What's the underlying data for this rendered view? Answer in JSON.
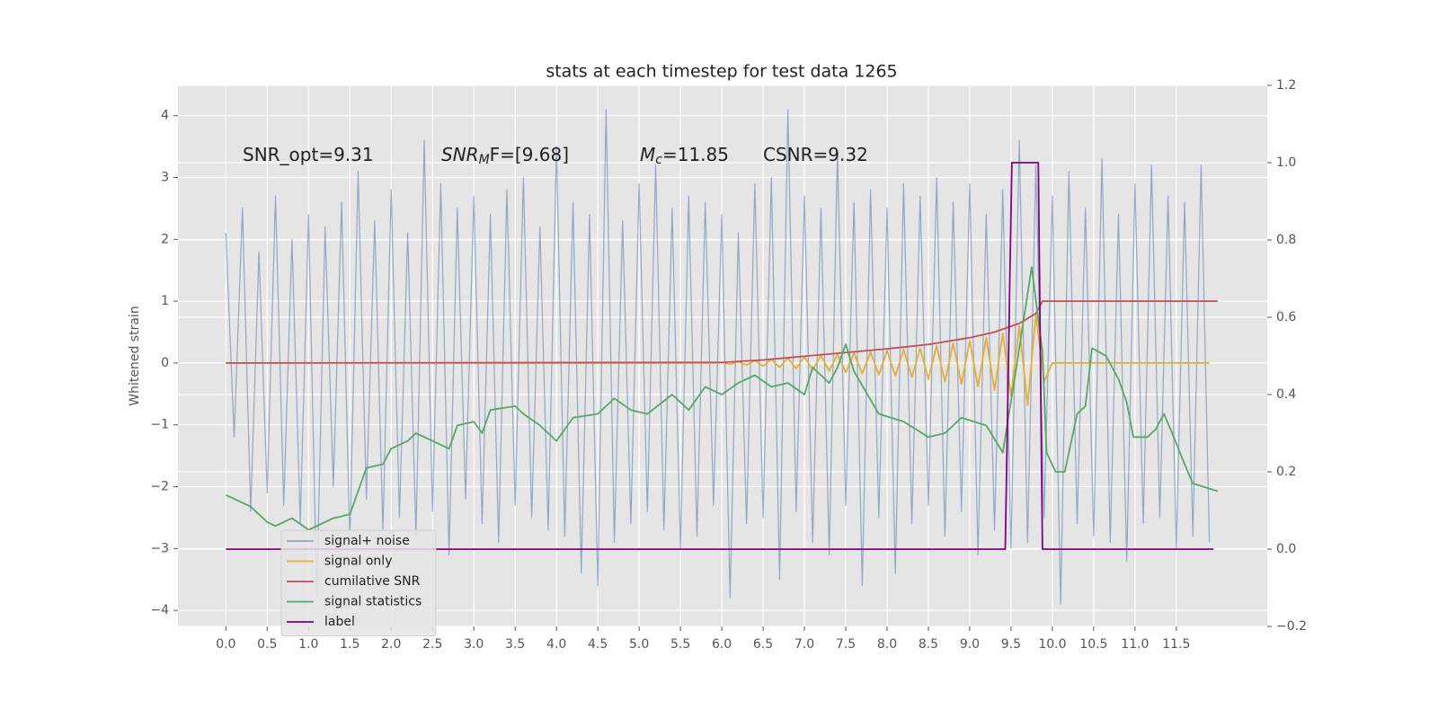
{
  "chart_data": {
    "type": "line",
    "title": "stats at each timestep for test data 1265",
    "y_label": "Whitened strain",
    "annotations": [
      [
        "SNR_opt=9.31"
      ],
      [
        "SNR",
        "M",
        "F=[9.68]"
      ],
      [
        "M",
        "c",
        "=11.85"
      ],
      [
        "CSNR=9.32"
      ]
    ],
    "xlim": [
      -0.58,
      12.6
    ],
    "ylim": [
      -4.26,
      4.49
    ],
    "y2lim": [
      -0.2,
      1.2
    ],
    "xticks": [
      {
        "value": 0,
        "label": "0.0"
      },
      0.5,
      {
        "value": 1,
        "label": "1.0"
      },
      1.5,
      {
        "value": 2,
        "label": "2.0"
      },
      2.5,
      {
        "value": 3,
        "label": "3.0"
      },
      3.5,
      {
        "value": 4,
        "label": "4.0"
      },
      4.5,
      {
        "value": 5,
        "label": "5.0"
      },
      5.5,
      {
        "value": 6,
        "label": "6.0"
      },
      6.5,
      {
        "value": 7,
        "label": "7.0"
      },
      7.5,
      {
        "value": 8,
        "label": "8.0"
      },
      8.5,
      {
        "value": 9,
        "label": "9.0"
      },
      9.5,
      {
        "value": 10,
        "label": "10.0"
      },
      10.5,
      {
        "value": 11,
        "label": "11.0"
      },
      11.5
    ],
    "yticks": [
      {
        "value": -4,
        "label": "−4"
      },
      {
        "value": -3,
        "label": "−3"
      },
      {
        "value": -2,
        "label": "−2"
      },
      {
        "value": -1,
        "label": "−1"
      },
      0,
      1,
      2,
      3,
      4
    ],
    "y2ticks": [
      {
        "value": -0.2,
        "label": "−0.2"
      },
      {
        "value": 0,
        "label": "0.0"
      },
      0.2,
      0.4,
      0.6,
      0.8,
      {
        "value": 1,
        "label": "1.0"
      },
      1.2
    ],
    "grid": true,
    "legend": "lower left",
    "series": [
      {
        "name": "signal+ noise",
        "color": "#4c72b0",
        "x": [
          0,
          0.1,
          0.2,
          0.3,
          0.4,
          0.5,
          0.6,
          0.7,
          0.8,
          0.9,
          1,
          1.1,
          1.2,
          1.3,
          1.4,
          1.5,
          1.6,
          1.7,
          1.8,
          1.9,
          2,
          2.1,
          2.2,
          2.3,
          2.4,
          2.5,
          2.6,
          2.7,
          2.8,
          2.9,
          3,
          3.1,
          3.2,
          3.3,
          3.4,
          3.5,
          3.6,
          3.7,
          3.8,
          3.9,
          4,
          4.1,
          4.2,
          4.3,
          4.4,
          4.5,
          4.6,
          4.7,
          4.8,
          4.9,
          5,
          5.1,
          5.2,
          5.3,
          5.4,
          5.5,
          5.6,
          5.7,
          5.8,
          5.9,
          6,
          6.1,
          6.2,
          6.3,
          6.4,
          6.5,
          6.6,
          6.7,
          6.8,
          6.9,
          7,
          7.1,
          7.2,
          7.3,
          7.4,
          7.5,
          7.6,
          7.7,
          7.8,
          7.9,
          8,
          8.1,
          8.2,
          8.3,
          8.4,
          8.5,
          8.6,
          8.7,
          8.8,
          8.9,
          9,
          9.1,
          9.2,
          9.3,
          9.4,
          9.5,
          9.6,
          9.7,
          9.8,
          9.9,
          10,
          10.1,
          10.2,
          10.3,
          10.4,
          10.5,
          10.6,
          10.7,
          10.8,
          10.9,
          11,
          11.1,
          11.2,
          11.3,
          11.4,
          11.5,
          11.6,
          11.7,
          11.8,
          11.9
        ],
        "values": [
          2.1,
          -1.2,
          2.5,
          -2.4,
          1.8,
          -2.1,
          2.7,
          -2.3,
          2.0,
          -2.6,
          2.4,
          -3.8,
          2.2,
          -2.0,
          2.6,
          -2.9,
          3.1,
          -2.2,
          2.3,
          -2.7,
          2.8,
          -2.5,
          2.1,
          -2.8,
          3.6,
          -2.4,
          2.9,
          -3.1,
          2.5,
          -2.2,
          2.7,
          -2.6,
          2.4,
          -2.9,
          2.8,
          -2.3,
          3.0,
          -2.5,
          2.2,
          -2.7,
          3.5,
          -2.8,
          2.6,
          -3.4,
          2.4,
          -3.6,
          4.1,
          -2.9,
          2.3,
          -2.6,
          2.9,
          -2.4,
          3.2,
          -2.7,
          2.5,
          -3.0,
          2.7,
          -2.8,
          2.6,
          -2.3,
          2.4,
          -3.8,
          2.1,
          -2.6,
          2.9,
          -2.5,
          3.0,
          -3.5,
          4.1,
          -2.4,
          2.7,
          -2.9,
          2.5,
          -3.1,
          3.4,
          -2.3,
          2.6,
          -3.6,
          2.8,
          -2.5,
          2.5,
          -3.4,
          2.9,
          -2.6,
          2.7,
          -2.3,
          3.0,
          -2.8,
          2.6,
          -2.4,
          2.9,
          -3.1,
          2.4,
          -2.7,
          2.8,
          -3.0,
          3.6,
          -2.9,
          3.2,
          -2.5,
          2.7,
          -3.9,
          3.1,
          -2.6,
          2.5,
          -2.8,
          3.3,
          -2.9,
          2.4,
          -3.2,
          2.9,
          -2.6,
          3.2,
          -2.5,
          2.7,
          -3.0,
          2.6,
          -2.8,
          3.2,
          -2.9
        ]
      },
      {
        "name": "signal only",
        "color": "#e5ae38",
        "x": [
          0,
          0.1,
          0.2,
          0.3,
          0.4,
          0.5,
          0.6,
          0.7,
          0.8,
          0.9,
          1,
          1.1,
          1.2,
          1.3,
          1.4,
          1.5,
          1.6,
          1.7,
          1.8,
          1.9,
          2,
          2.1,
          2.2,
          2.3,
          2.4,
          2.5,
          2.6,
          2.7,
          2.8,
          2.9,
          3,
          3.1,
          3.2,
          3.3,
          3.4,
          3.5,
          3.6,
          3.7,
          3.8,
          3.9,
          4,
          4.1,
          4.2,
          4.3,
          4.4,
          4.5,
          4.6,
          4.7,
          4.8,
          4.9,
          5,
          5.1,
          5.2,
          5.3,
          5.4,
          5.5,
          5.6,
          5.7,
          5.8,
          5.9,
          6,
          6.1,
          6.2,
          6.3,
          6.4,
          6.5,
          6.6,
          6.7,
          6.8,
          6.9,
          7,
          7.1,
          7.2,
          7.3,
          7.4,
          7.5,
          7.6,
          7.7,
          7.8,
          7.9,
          8,
          8.1,
          8.2,
          8.3,
          8.4,
          8.5,
          8.6,
          8.7,
          8.8,
          8.9,
          9,
          9.1,
          9.2,
          9.3,
          9.4,
          9.5,
          9.6,
          9.7,
          9.8,
          9.9,
          10,
          10.1,
          10.2,
          10.3,
          10.4,
          10.5,
          10.6,
          10.7,
          10.8,
          10.9,
          11,
          11.1,
          11.2,
          11.3,
          11.4,
          11.5,
          11.6,
          11.7,
          11.8,
          11.9
        ],
        "values": [
          0,
          0,
          0,
          0,
          0,
          0,
          0,
          0,
          0,
          0,
          0,
          0,
          0,
          0,
          0,
          0,
          0,
          0,
          0,
          0,
          0,
          0,
          0,
          0,
          0,
          0,
          0,
          0,
          0,
          0,
          0,
          0,
          0,
          0,
          0,
          0,
          0,
          0,
          0,
          0,
          0,
          0,
          0,
          0,
          0,
          0,
          0,
          0,
          0,
          0,
          0,
          0,
          0,
          0,
          0,
          0,
          0,
          0,
          0,
          0,
          0.01,
          -0.02,
          0.02,
          -0.03,
          0.04,
          -0.05,
          0.06,
          -0.07,
          0.08,
          -0.09,
          0.1,
          -0.11,
          0.12,
          -0.13,
          0.14,
          -0.15,
          0.16,
          -0.17,
          0.18,
          -0.19,
          0.2,
          -0.21,
          0.22,
          -0.23,
          0.24,
          -0.26,
          0.28,
          -0.3,
          0.32,
          -0.34,
          0.36,
          -0.38,
          0.41,
          -0.44,
          0.48,
          -0.53,
          0.6,
          -0.68,
          0.78,
          -0.3,
          0,
          0,
          0,
          0,
          0,
          0,
          0,
          0,
          0,
          0,
          0,
          0,
          0,
          0,
          0,
          0,
          0,
          0,
          0,
          0
        ]
      },
      {
        "name": "cumilative SNR",
        "color": "#c44e52",
        "x": [
          0,
          6,
          6.5,
          7,
          7.5,
          8,
          8.5,
          9,
          9.3,
          9.6,
          9.8,
          9.88,
          12
        ],
        "values": [
          0,
          0.01,
          0.05,
          0.11,
          0.17,
          0.23,
          0.3,
          0.41,
          0.5,
          0.64,
          0.8,
          1.0,
          1.0
        ]
      },
      {
        "name": "signal statistics",
        "color": "#55a868",
        "axis": "y2",
        "x": [
          0,
          0.3,
          0.5,
          0.6,
          0.8,
          1,
          1.3,
          1.5,
          1.6,
          1.7,
          1.9,
          2,
          2.2,
          2.3,
          2.5,
          2.7,
          2.8,
          3,
          3.1,
          3.2,
          3.5,
          3.6,
          3.8,
          4,
          4.2,
          4.5,
          4.7,
          4.9,
          5.1,
          5.4,
          5.6,
          5.8,
          6,
          6.2,
          6.4,
          6.6,
          6.8,
          7,
          7.1,
          7.3,
          7.4,
          7.5,
          7.6,
          7.9,
          8.2,
          8.5,
          8.7,
          8.9,
          9.2,
          9.4,
          9.55,
          9.75,
          9.88,
          9.93,
          10.04,
          10.15,
          10.3,
          10.4,
          10.48,
          10.65,
          10.8,
          10.9,
          10.98,
          11.15,
          11.25,
          11.35,
          11.45,
          11.6,
          11.7,
          12
        ],
        "values": [
          0.14,
          0.11,
          0.07,
          0.06,
          0.08,
          0.05,
          0.08,
          0.09,
          0.15,
          0.21,
          0.22,
          0.26,
          0.28,
          0.3,
          0.28,
          0.26,
          0.32,
          0.33,
          0.3,
          0.36,
          0.37,
          0.35,
          0.32,
          0.28,
          0.34,
          0.35,
          0.39,
          0.36,
          0.35,
          0.4,
          0.36,
          0.42,
          0.4,
          0.43,
          0.45,
          0.42,
          0.43,
          0.4,
          0.47,
          0.43,
          0.47,
          0.53,
          0.46,
          0.35,
          0.33,
          0.29,
          0.3,
          0.34,
          0.32,
          0.25,
          0.45,
          0.73,
          0.51,
          0.25,
          0.2,
          0.2,
          0.35,
          0.37,
          0.52,
          0.5,
          0.44,
          0.38,
          0.29,
          0.29,
          0.31,
          0.35,
          0.3,
          0.22,
          0.17,
          0.15
        ]
      },
      {
        "name": "label",
        "color": "#800080",
        "axis": "y2",
        "x": [
          0,
          9.43,
          9.51,
          9.83,
          9.88,
          11.95
        ],
        "values": [
          0,
          0,
          1,
          1,
          0,
          0
        ]
      }
    ]
  }
}
